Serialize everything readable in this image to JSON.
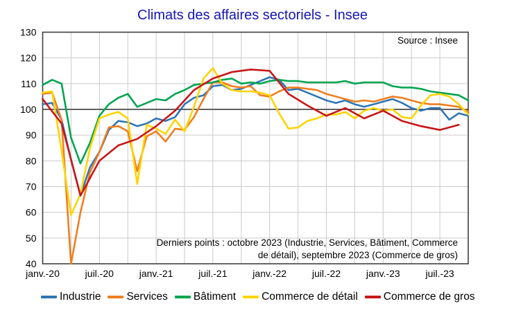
{
  "title": "Climats des affaires sectoriels - Insee",
  "source_note": "Source : Insee",
  "annotation_line1": "Derniers points : octobre 2023 (Industrie, Services, Bâtiment, Commerce",
  "annotation_line2": "de détail), septembre 2023 (Commerce de gros)",
  "chart_data": {
    "type": "line",
    "title": "Climats des affaires sectoriels - Insee",
    "xlabel": "",
    "ylabel": "",
    "ylim": [
      40,
      130
    ],
    "y_ticks": [
      40,
      50,
      60,
      70,
      80,
      90,
      100,
      110,
      120,
      130
    ],
    "reference_line_y": 100,
    "grid": true,
    "grid_color": "#CACACA",
    "border_color": "#3F3F3F",
    "reference_line_color": "#4A4A4A",
    "legend_position": "bottom",
    "x_tick_labels": [
      "janv.-20",
      "juil.-20",
      "janv.-21",
      "juil.-21",
      "janv.-22",
      "juil.-22",
      "janv.-23",
      "juil.-23"
    ],
    "x_tick_indices": [
      0,
      6,
      12,
      18,
      24,
      30,
      36,
      42
    ],
    "x_months": [
      "2020-01",
      "2020-02",
      "2020-03",
      "2020-04",
      "2020-05",
      "2020-06",
      "2020-07",
      "2020-08",
      "2020-09",
      "2020-10",
      "2020-11",
      "2020-12",
      "2021-01",
      "2021-02",
      "2021-03",
      "2021-04",
      "2021-05",
      "2021-06",
      "2021-07",
      "2021-08",
      "2021-09",
      "2021-10",
      "2021-11",
      "2021-12",
      "2022-01",
      "2022-02",
      "2022-03",
      "2022-04",
      "2022-05",
      "2022-06",
      "2022-07",
      "2022-08",
      "2022-09",
      "2022-10",
      "2022-11",
      "2022-12",
      "2023-01",
      "2023-02",
      "2023-03",
      "2023-04",
      "2023-05",
      "2023-06",
      "2023-07",
      "2023-08",
      "2023-09",
      "2023-10"
    ],
    "series": [
      {
        "id": "industrie",
        "name": "Industrie",
        "color": "#2E75B6",
        "last_point": "2023-10",
        "values": [
          102,
          102.5,
          96,
          80.5,
          66.5,
          77.5,
          83.5,
          92,
          95.5,
          95,
          93.5,
          94.5,
          96.5,
          95.5,
          97,
          102,
          104.5,
          105.5,
          109,
          109.5,
          107.5,
          108,
          109.5,
          111,
          112.5,
          111.5,
          107.5,
          108,
          106.5,
          105,
          103.5,
          102.5,
          103.5,
          102,
          101,
          102,
          103,
          104,
          102.5,
          100.5,
          99.5,
          100.5,
          100.5,
          96,
          98.5,
          97.5
        ]
      },
      {
        "id": "services",
        "name": "Services",
        "color": "#F07E20",
        "last_point": "2023-10",
        "values": [
          106,
          106.5,
          96,
          40,
          60,
          75.5,
          83.5,
          93,
          93.5,
          91.5,
          76,
          89.5,
          91.5,
          87.5,
          92.5,
          92,
          97,
          104,
          110.5,
          110.5,
          109,
          108.5,
          109,
          105.5,
          105,
          107,
          108.5,
          108.5,
          108,
          107.5,
          106,
          105,
          104,
          103,
          103.5,
          103,
          104,
          105,
          104.5,
          103.5,
          102.5,
          102,
          102,
          101.5,
          101,
          99
        ]
      },
      {
        "id": "batiment",
        "name": "Bâtiment",
        "color": "#00A550",
        "last_point": "2023-10",
        "values": [
          109.5,
          111.5,
          110,
          89,
          79,
          87,
          97.5,
          102,
          104.5,
          106,
          101,
          102.5,
          104,
          103.5,
          106,
          107.5,
          109.5,
          110,
          110.5,
          111.5,
          112,
          110,
          110.5,
          110,
          111,
          111.5,
          111,
          111,
          110.5,
          110.5,
          110.5,
          110.5,
          111,
          110,
          110.5,
          110.5,
          110.5,
          109,
          108.5,
          108.5,
          108,
          107,
          106.5,
          106,
          105.5,
          103.5
        ]
      },
      {
        "id": "commerce-detail",
        "name": "Commerce de détail",
        "color": "#FFD400",
        "last_point": "2023-10",
        "values": [
          106.5,
          107,
          84,
          59,
          67,
          85,
          96.5,
          98,
          99,
          96.5,
          71,
          94,
          92.5,
          90.5,
          96,
          91.5,
          101,
          112,
          116,
          110,
          107.5,
          107,
          107,
          106.5,
          105.5,
          98.5,
          92.5,
          93,
          95.5,
          96.5,
          98,
          98,
          99,
          96.5,
          99.5,
          100.5,
          99.5,
          100,
          97,
          96.5,
          101.5,
          105.5,
          106,
          105,
          102,
          98
        ]
      },
      {
        "id": "commerce-gros",
        "name": "Commerce de gros",
        "color": "#C81616",
        "last_point": "2023-09",
        "frequency": "bimonthly",
        "x_indices": [
          0,
          2,
          4,
          6,
          8,
          10,
          12,
          14,
          16,
          18,
          20,
          22,
          24,
          26,
          28,
          30,
          32,
          34,
          36,
          38,
          40,
          42,
          44
        ],
        "values": [
          104,
          94.5,
          66.5,
          80,
          86,
          88.5,
          93.5,
          99.5,
          107.5,
          112,
          114.5,
          115.5,
          115,
          106,
          101.5,
          97.5,
          100.5,
          96.5,
          99.5,
          95.5,
          93.5,
          92,
          94
        ]
      }
    ]
  }
}
